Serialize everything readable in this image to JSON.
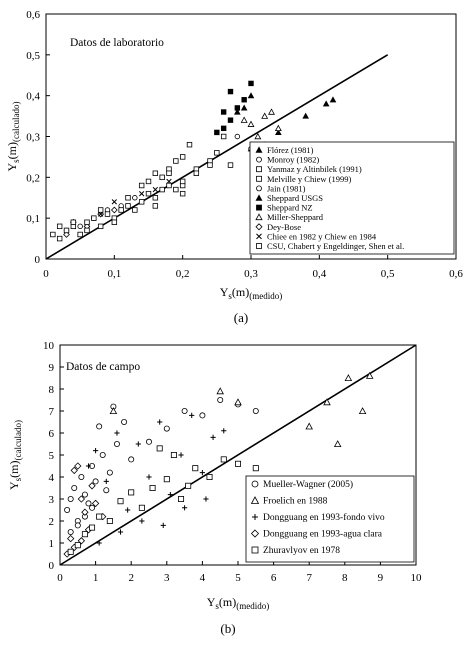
{
  "chart_data": [
    {
      "type": "scatter",
      "panel_tag": "(a)",
      "title": "Datos de laboratorio",
      "xlabel": {
        "main": "Y",
        "sub1": "s",
        "paren": "(m)",
        "sub2": "(medido)"
      },
      "ylabel": {
        "main": "Y",
        "sub1": "s",
        "paren": "(m)",
        "sub2": "(calculado)"
      },
      "xlim": [
        0,
        0.6
      ],
      "ylim": [
        0,
        0.6
      ],
      "xticks": [
        "0",
        "0,1",
        "0,2",
        "0,3",
        "0,4",
        "0,5",
        "0,6"
      ],
      "yticks": [
        "0",
        "0,1",
        "0,2",
        "0,3",
        "0,4",
        "0,5",
        "0,6"
      ],
      "grid": false,
      "legend_position": "bottom-right",
      "reference_line": {
        "x": [
          0,
          0.5
        ],
        "y": [
          0,
          0.5
        ]
      },
      "series": [
        {
          "name": "Flórez (1981)",
          "marker": "triangle",
          "x": [
            0.38,
            0.41,
            0.42,
            0.34,
            0.32,
            0.3
          ],
          "y": [
            0.35,
            0.38,
            0.39,
            0.31,
            0.28,
            0.27
          ]
        },
        {
          "name": "Monroy (1982)",
          "marker": "circle-open",
          "x": [
            0.28,
            0.3,
            0.31
          ],
          "y": [
            0.3,
            0.27,
            0.22
          ]
        },
        {
          "name": "Yanmaz y Altinbilek (1991)",
          "marker": "square-open",
          "x": [
            0.2,
            0.21,
            0.22,
            0.24,
            0.25,
            0.26,
            0.27
          ],
          "y": [
            0.25,
            0.28,
            0.22,
            0.24,
            0.26,
            0.3,
            0.23
          ]
        },
        {
          "name": "Melville y Chiew (1999)",
          "marker": "square-open",
          "x": [
            0.15,
            0.16,
            0.17,
            0.18,
            0.19,
            0.2
          ],
          "y": [
            0.19,
            0.21,
            0.2,
            0.22,
            0.24,
            0.18
          ]
        },
        {
          "name": "Jain (1981)",
          "marker": "circle-open",
          "x": [
            0.03,
            0.05,
            0.07,
            0.09,
            0.11,
            0.13
          ],
          "y": [
            0.07,
            0.08,
            0.1,
            0.12,
            0.13,
            0.15
          ]
        },
        {
          "name": "Sheppard USGS",
          "marker": "triangle-filled",
          "x": [
            0.28,
            0.29,
            0.3
          ],
          "y": [
            0.36,
            0.37,
            0.4
          ]
        },
        {
          "name": "Sheppard NZ",
          "marker": "square-filled",
          "x": [
            0.25,
            0.26,
            0.27,
            0.28,
            0.29,
            0.3,
            0.27,
            0.26
          ],
          "y": [
            0.31,
            0.32,
            0.34,
            0.37,
            0.39,
            0.43,
            0.41,
            0.36
          ]
        },
        {
          "name": "Miller-Sheppard",
          "marker": "triangle-open",
          "x": [
            0.3,
            0.32,
            0.34,
            0.33,
            0.29,
            0.31
          ],
          "y": [
            0.33,
            0.35,
            0.32,
            0.36,
            0.34,
            0.3
          ]
        },
        {
          "name": "Dey-Bose",
          "marker": "diamond-open",
          "x": [
            0.03,
            0.04,
            0.06,
            0.08,
            0.1
          ],
          "y": [
            0.06,
            0.09,
            0.08,
            0.11,
            0.12
          ]
        },
        {
          "name": "Chiee en 1982 y Chiew en 1984",
          "marker": "cross",
          "x": [
            0.08,
            0.1,
            0.12,
            0.14,
            0.16,
            0.18
          ],
          "y": [
            0.11,
            0.14,
            0.13,
            0.16,
            0.17,
            0.19
          ]
        },
        {
          "name": "CSU, Chabert y Engeldinger, Shen et al.",
          "marker": "square-open",
          "x": [
            0.01,
            0.02,
            0.03,
            0.04,
            0.05,
            0.06,
            0.07,
            0.08,
            0.09,
            0.1,
            0.11,
            0.12,
            0.13,
            0.14,
            0.15,
            0.16,
            0.17,
            0.18,
            0.19,
            0.2,
            0.22,
            0.24,
            0.02,
            0.04,
            0.06,
            0.08,
            0.1,
            0.12,
            0.14,
            0.16,
            0.18,
            0.2
          ],
          "y": [
            0.06,
            0.05,
            0.07,
            0.08,
            0.06,
            0.09,
            0.1,
            0.08,
            0.11,
            0.1,
            0.12,
            0.13,
            0.12,
            0.14,
            0.16,
            0.15,
            0.17,
            0.18,
            0.17,
            0.19,
            0.21,
            0.23,
            0.08,
            0.09,
            0.07,
            0.12,
            0.09,
            0.15,
            0.18,
            0.13,
            0.21,
            0.16
          ]
        }
      ]
    },
    {
      "type": "scatter",
      "panel_tag": "(b)",
      "title": "Datos de campo",
      "xlabel": {
        "main": "Y",
        "sub1": "s",
        "paren": "(m)",
        "sub2": "(medido)"
      },
      "ylabel": {
        "main": "Y",
        "sub1": "s",
        "paren": "(m)",
        "sub2": "(calculado)"
      },
      "xlim": [
        0,
        10
      ],
      "ylim": [
        0,
        10
      ],
      "xticks": [
        "0",
        "1",
        "2",
        "3",
        "4",
        "5",
        "6",
        "7",
        "8",
        "9",
        "10"
      ],
      "yticks": [
        "0",
        "1",
        "2",
        "3",
        "4",
        "5",
        "6",
        "7",
        "8",
        "9",
        "10"
      ],
      "grid": false,
      "legend_position": "bottom-right",
      "reference_line": {
        "x": [
          0,
          10
        ],
        "y": [
          0,
          10
        ]
      },
      "series": [
        {
          "name": "Mueller-Wagner (2005)",
          "marker": "circle-open",
          "x": [
            0.2,
            0.3,
            0.4,
            0.5,
            0.6,
            0.7,
            0.8,
            0.9,
            1.0,
            1.2,
            1.4,
            1.6,
            1.8,
            2.0,
            2.5,
            3.0,
            3.5,
            4.0,
            0.3,
            0.5,
            0.7,
            0.9,
            1.1,
            1.3,
            1.5,
            4.5,
            5.0,
            5.5
          ],
          "y": [
            2.5,
            3.0,
            3.5,
            2.0,
            4.0,
            3.2,
            2.8,
            4.5,
            3.8,
            5.0,
            4.2,
            5.5,
            6.5,
            4.8,
            5.6,
            6.2,
            7.0,
            6.8,
            1.5,
            1.8,
            2.2,
            2.6,
            6.3,
            3.4,
            7.2,
            7.5,
            7.3,
            7.0
          ]
        },
        {
          "name": "Froelich en 1988",
          "marker": "triangle-open",
          "x": [
            7.8,
            8.1,
            8.5,
            8.7,
            7.5,
            7.0,
            1.5,
            4.5,
            5.0
          ],
          "y": [
            5.5,
            8.5,
            7.0,
            8.6,
            7.4,
            6.3,
            7.0,
            7.9,
            7.4
          ]
        },
        {
          "name": "Dongguang en 1993-fondo vivo",
          "marker": "plus",
          "x": [
            0.8,
            1.0,
            1.3,
            1.6,
            1.9,
            2.2,
            2.5,
            2.8,
            3.1,
            3.4,
            3.7,
            4.0,
            4.3,
            4.6,
            1.1,
            1.7,
            2.3,
            2.9,
            3.5,
            4.1
          ],
          "y": [
            4.5,
            5.2,
            3.8,
            6.0,
            2.5,
            5.5,
            4.0,
            6.5,
            3.2,
            5.0,
            6.8,
            4.2,
            5.8,
            6.1,
            1.0,
            1.5,
            2.0,
            1.8,
            2.6,
            3.0
          ]
        },
        {
          "name": "Dongguang en 1993-agua clara",
          "marker": "diamond-open",
          "x": [
            0.2,
            0.3,
            0.4,
            0.5,
            0.6,
            0.7,
            0.8,
            0.9,
            1.0,
            1.2,
            0.4,
            0.6
          ],
          "y": [
            0.5,
            1.2,
            4.3,
            4.5,
            3.0,
            2.4,
            1.6,
            3.6,
            2.8,
            2.2,
            0.8,
            1.1
          ]
        },
        {
          "name": "Zhuravlyov en 1978",
          "marker": "square-open",
          "x": [
            0.3,
            0.5,
            0.7,
            0.9,
            1.1,
            1.4,
            1.7,
            2.0,
            2.3,
            2.6,
            3.0,
            3.4,
            3.8,
            4.2,
            4.6,
            5.0,
            5.5,
            2.8,
            3.2,
            3.6
          ],
          "y": [
            0.6,
            0.9,
            1.4,
            1.7,
            2.2,
            2.0,
            2.9,
            3.3,
            2.6,
            3.5,
            3.9,
            3.0,
            4.4,
            4.0,
            4.8,
            4.6,
            4.4,
            5.3,
            5.0,
            3.6
          ]
        }
      ]
    }
  ]
}
